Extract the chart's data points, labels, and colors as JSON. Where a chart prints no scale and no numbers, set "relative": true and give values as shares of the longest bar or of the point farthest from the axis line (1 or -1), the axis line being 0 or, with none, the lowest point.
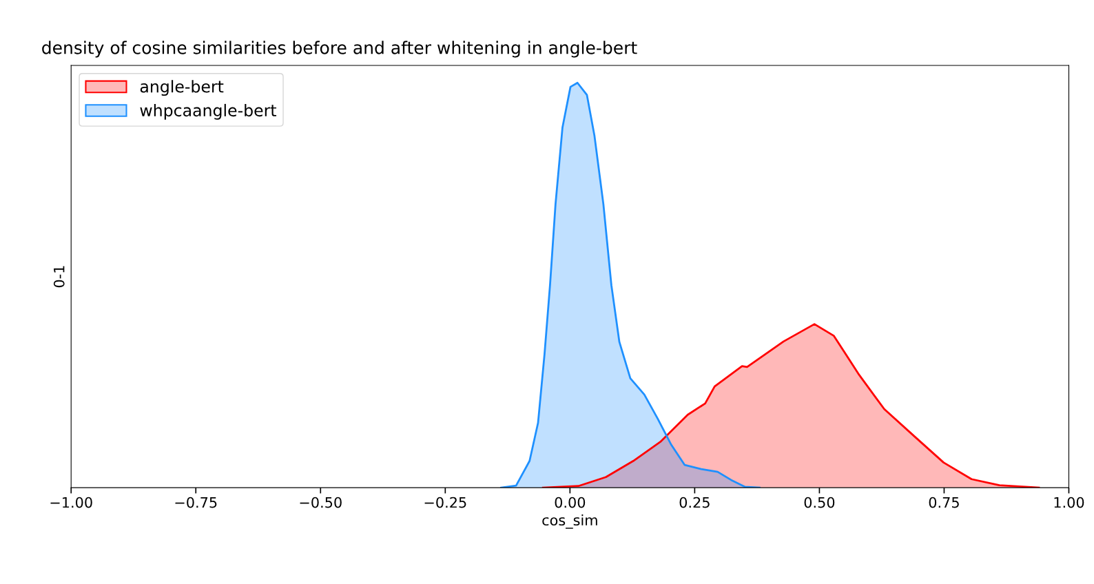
{
  "chart_data": {
    "type": "area",
    "title": "density of cosine similarities before and after whitening in angle-bert",
    "xlabel": "cos_sim",
    "ylabel": "0-1",
    "relative": true,
    "xlim": [
      -1.0,
      1.0
    ],
    "xticks": [
      {
        "value": -1.0,
        "label": "−1.00"
      },
      {
        "value": -0.75,
        "label": "−0.75"
      },
      {
        "value": -0.5,
        "label": "−0.50"
      },
      {
        "value": -0.25,
        "label": "−0.25"
      },
      {
        "value": 0.0,
        "label": "0.00"
      },
      {
        "value": 0.25,
        "label": "0.25"
      },
      {
        "value": 0.5,
        "label": "0.50"
      },
      {
        "value": 0.75,
        "label": "0.75"
      },
      {
        "value": 1.0,
        "label": "1.00"
      }
    ],
    "grid": false,
    "legend": "top left",
    "series": [
      {
        "name": "angle-bert",
        "color": "#ff0000",
        "x": [
          -0.054,
          0.017,
          0.072,
          0.127,
          0.181,
          0.236,
          0.271,
          0.29,
          0.345,
          0.355,
          0.428,
          0.49,
          0.529,
          0.58,
          0.63,
          0.692,
          0.749,
          0.805,
          0.861,
          0.94
        ],
        "values": [
          0,
          0.004,
          0.026,
          0.066,
          0.113,
          0.18,
          0.208,
          0.25,
          0.3,
          0.298,
          0.361,
          0.404,
          0.375,
          0.278,
          0.194,
          0.125,
          0.062,
          0.021,
          0.006,
          0
        ]
      },
      {
        "name": "whpcaangle-bert",
        "color": "#1e90ff",
        "x": [
          -0.138,
          -0.108,
          -0.081,
          -0.064,
          -0.051,
          -0.04,
          -0.029,
          -0.015,
          0.001,
          0.015,
          0.034,
          0.049,
          0.067,
          0.083,
          0.099,
          0.121,
          0.149,
          0.176,
          0.203,
          0.23,
          0.263,
          0.296,
          0.323,
          0.351,
          0.38
        ],
        "values": [
          0,
          0.005,
          0.066,
          0.16,
          0.33,
          0.5,
          0.7,
          0.89,
          0.99,
          1.0,
          0.97,
          0.87,
          0.7,
          0.5,
          0.36,
          0.27,
          0.23,
          0.17,
          0.106,
          0.056,
          0.046,
          0.039,
          0.019,
          0.002,
          0
        ]
      }
    ]
  }
}
